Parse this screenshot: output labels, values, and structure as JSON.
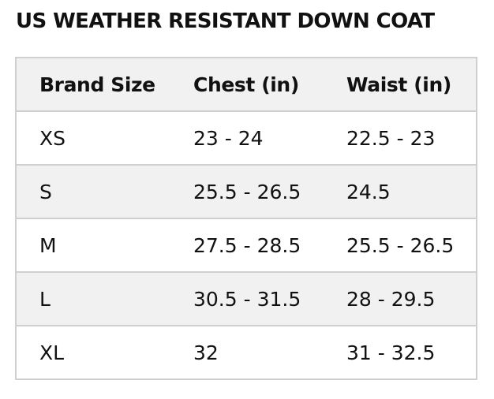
{
  "title": "US WEATHER RESISTANT DOWN COAT",
  "table": {
    "headers": [
      "Brand Size",
      "Chest (in)",
      "Waist (in)"
    ],
    "rows": [
      [
        "XS",
        "23 - 24",
        "22.5 - 23"
      ],
      [
        "S",
        "25.5 - 26.5",
        "24.5"
      ],
      [
        "M",
        "27.5 - 28.5",
        "25.5 - 26.5"
      ],
      [
        "L",
        "30.5 - 31.5",
        "28 - 29.5"
      ],
      [
        "XL",
        "32",
        "31 - 32.5"
      ]
    ]
  },
  "colors": {
    "text": "#111111",
    "border": "#cfcfcf",
    "shaded_row": "#f1f1f1",
    "plain_row": "#ffffff"
  }
}
